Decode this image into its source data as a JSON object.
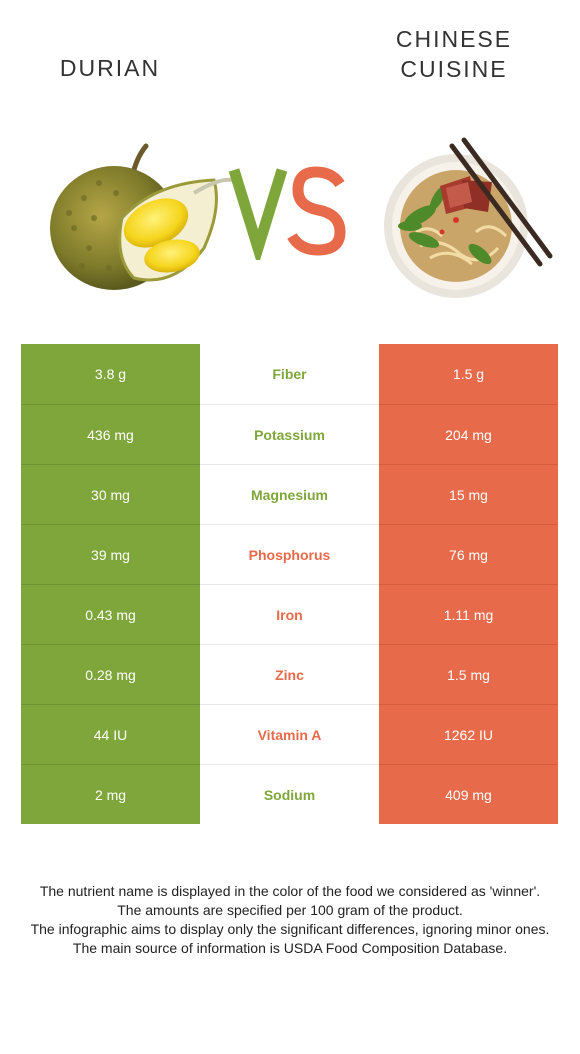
{
  "header": {
    "left_food": "DURIAN",
    "right_food_line1": "CHINESE",
    "right_food_line2": "CUISINE",
    "vs_text": "VS"
  },
  "colors": {
    "left_food": "#7ea63a",
    "right_food": "#e76a4b"
  },
  "comparison": [
    {
      "nutrient": "Fiber",
      "left": "3.8 g",
      "right": "1.5 g",
      "winner": "left"
    },
    {
      "nutrient": "Potassium",
      "left": "436 mg",
      "right": "204 mg",
      "winner": "left"
    },
    {
      "nutrient": "Magnesium",
      "left": "30 mg",
      "right": "15 mg",
      "winner": "left"
    },
    {
      "nutrient": "Phosphorus",
      "left": "39 mg",
      "right": "76 mg",
      "winner": "right"
    },
    {
      "nutrient": "Iron",
      "left": "0.43 mg",
      "right": "1.11 mg",
      "winner": "right"
    },
    {
      "nutrient": "Zinc",
      "left": "0.28 mg",
      "right": "1.5 mg",
      "winner": "right"
    },
    {
      "nutrient": "Vitamin A",
      "left": "44 IU",
      "right": "1262 IU",
      "winner": "right"
    },
    {
      "nutrient": "Sodium",
      "left": "2 mg",
      "right": "409 mg",
      "winner": "left"
    }
  ],
  "footnotes": [
    "The nutrient name is displayed in the color of the food we considered as 'winner'.",
    "The amounts are specified per 100 gram of the product.",
    "The infographic aims to display only the significant differences, ignoring minor ones.",
    "The main source of information is USDA Food Composition Database."
  ],
  "images": {
    "left": "durian-fruit-image",
    "right": "noodle-soup-bowl-image"
  }
}
